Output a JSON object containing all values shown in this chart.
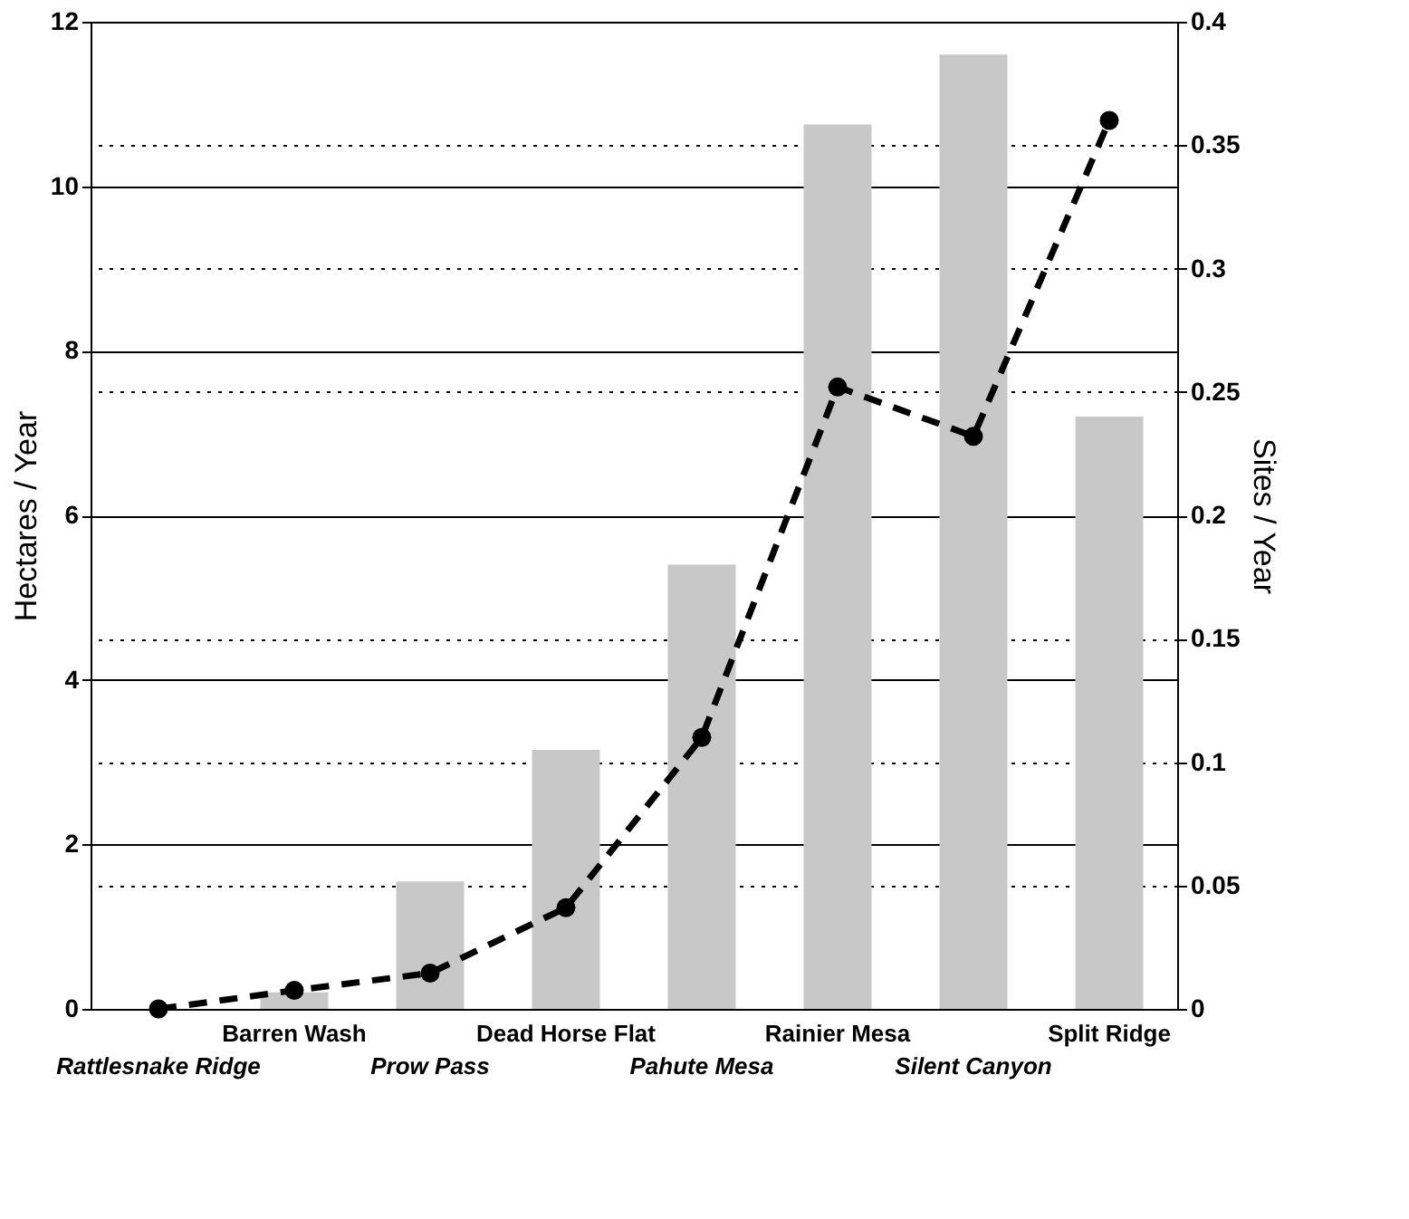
{
  "chart_data": {
    "type": "bar",
    "categories": [
      "Rattlesnake Ridge",
      "Barren Wash",
      "Prow Pass",
      "Dead Horse Flat",
      "Pahute Mesa",
      "Rainier Mesa",
      "Silent Canyon",
      "Split Ridge"
    ],
    "series": [
      {
        "color": "#c8c8c8",
        "values": [
          0,
          0.2,
          1.55,
          3.15,
          5.4,
          10.75,
          11.6,
          7.2
        ]
      },
      {
        "type": "line",
        "axis": "y2",
        "color": "#000000",
        "marker": "circle",
        "line_style": "dashed",
        "values": [
          0,
          0.0075,
          0.0145,
          0.041,
          0.11,
          0.252,
          0.232,
          0.36
        ]
      }
    ],
    "ylabel": "Hectares / Year",
    "y2label": "Sites / Year",
    "ylim": [
      0,
      12
    ],
    "yticks": [
      0,
      2,
      4,
      6,
      8,
      10,
      12
    ],
    "y2lim": [
      0,
      0.4
    ],
    "y2ticks": [
      0,
      0.05,
      0.1,
      0.15,
      0.2,
      0.25,
      0.3,
      0.35,
      0.4
    ],
    "grid": true
  }
}
